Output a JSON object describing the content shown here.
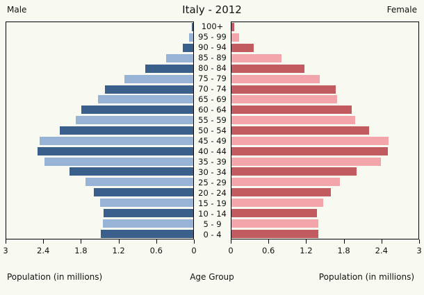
{
  "title": "Italy - 2012",
  "left_header": "Male",
  "right_header": "Female",
  "axis": {
    "left_caption": "Population (in millions)",
    "center_caption": "Age Group",
    "right_caption": "Population (in millions)",
    "left_ticks": [
      "3",
      "2.4",
      "1.8",
      "1.2",
      "0.6",
      "0"
    ],
    "right_ticks": [
      "0",
      "0.6",
      "1.2",
      "1.8",
      "2.4",
      "3"
    ]
  },
  "colors": {
    "male_dark": "#3a5f8a",
    "male_light": "#97b4d6",
    "female_dark": "#c25b60",
    "female_light": "#f2a6ab",
    "panel_border": "#000000",
    "background": "#f8f9f1"
  },
  "chart_data": {
    "type": "bar",
    "subtype": "population-pyramid",
    "title": "Italy - 2012",
    "units": "millions",
    "xlim": [
      0,
      3
    ],
    "x_ticks": [
      0,
      0.6,
      1.2,
      1.8,
      2.4,
      3
    ],
    "xlabel": "Population (in millions)",
    "ylabel": "Age Group",
    "categories_top_to_bottom": [
      "100+",
      "95 - 99",
      "90 - 94",
      "85 - 89",
      "80 - 84",
      "75 - 79",
      "70 - 74",
      "65 - 69",
      "60 - 64",
      "55 - 59",
      "50 - 54",
      "45 - 49",
      "40 - 44",
      "35 - 39",
      "30 - 34",
      "25 - 29",
      "20 - 24",
      "15 - 19",
      "10 - 14",
      "5 - 9",
      "0 - 4"
    ],
    "series": [
      {
        "name": "Male",
        "side": "left",
        "values": [
          0.02,
          0.07,
          0.17,
          0.43,
          0.77,
          1.1,
          1.42,
          1.53,
          1.8,
          1.88,
          2.14,
          2.47,
          2.5,
          2.39,
          1.98,
          1.73,
          1.6,
          1.5,
          1.44,
          1.45,
          1.48
        ]
      },
      {
        "name": "Female",
        "side": "right",
        "values": [
          0.05,
          0.12,
          0.36,
          0.8,
          1.17,
          1.42,
          1.67,
          1.7,
          1.93,
          1.98,
          2.21,
          2.52,
          2.51,
          2.4,
          2.01,
          1.74,
          1.6,
          1.47,
          1.37,
          1.39,
          1.39
        ]
      }
    ]
  }
}
